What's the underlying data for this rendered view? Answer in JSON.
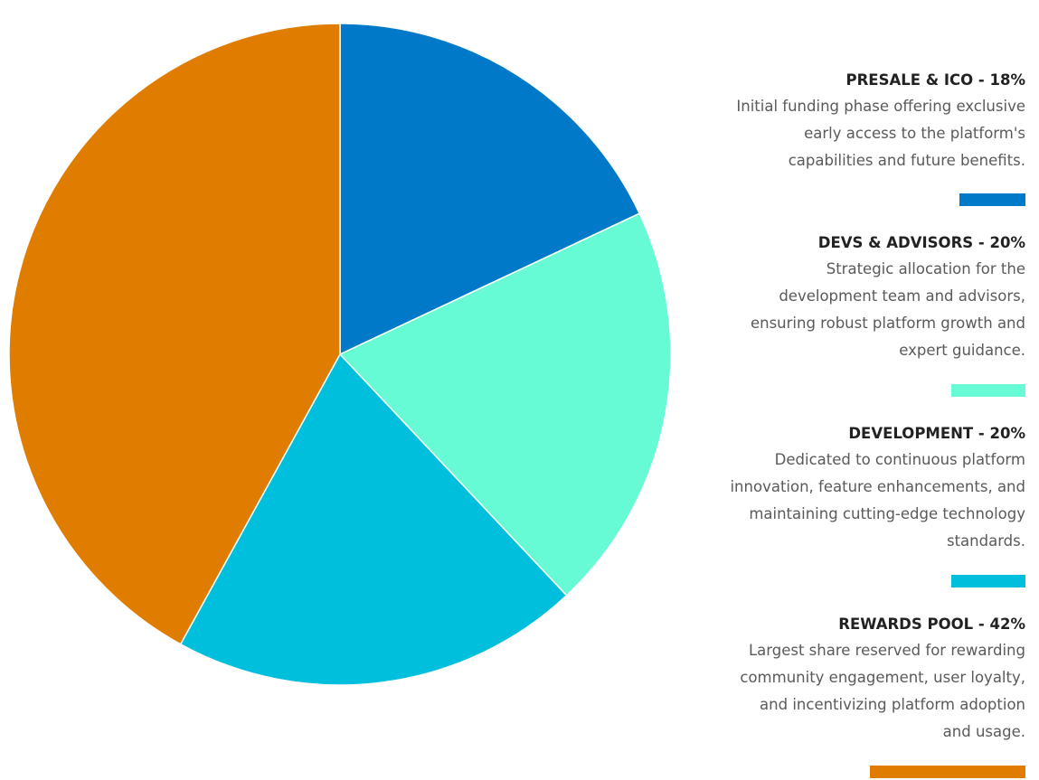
{
  "chart_data": {
    "type": "pie",
    "categories": [
      "PRESALE & ICO",
      "DEVS & ADVISORS",
      "DEVELOPMENT",
      "REWARDS POOL"
    ],
    "values": [
      18,
      20,
      20,
      42
    ],
    "colors": [
      "#0079c8",
      "#66fbd5",
      "#00bfdc",
      "#e07d00"
    ],
    "start_angle": "12 o'clock",
    "direction": "clockwise"
  },
  "legend": [
    {
      "title": "PRESALE & ICO - 18%",
      "desc_lines": [
        "Initial funding phase offering exclusive",
        "early access to the platform's",
        "capabilities and future benefits."
      ]
    },
    {
      "title": "DEVS & ADVISORS - 20%",
      "desc_lines": [
        "Strategic allocation for the",
        "development team and advisors,",
        "ensuring robust platform growth and",
        "expert guidance."
      ]
    },
    {
      "title": "DEVELOPMENT - 20%",
      "desc_lines": [
        "Dedicated to continuous platform",
        "innovation, feature enhancements, and",
        "maintaining cutting-edge technology",
        "standards."
      ]
    },
    {
      "title": "REWARDS POOL - 42%",
      "desc_lines": [
        "Largest share reserved for rewarding",
        "community engagement, user loyalty,",
        "and incentivizing platform adoption",
        "and usage."
      ]
    }
  ]
}
